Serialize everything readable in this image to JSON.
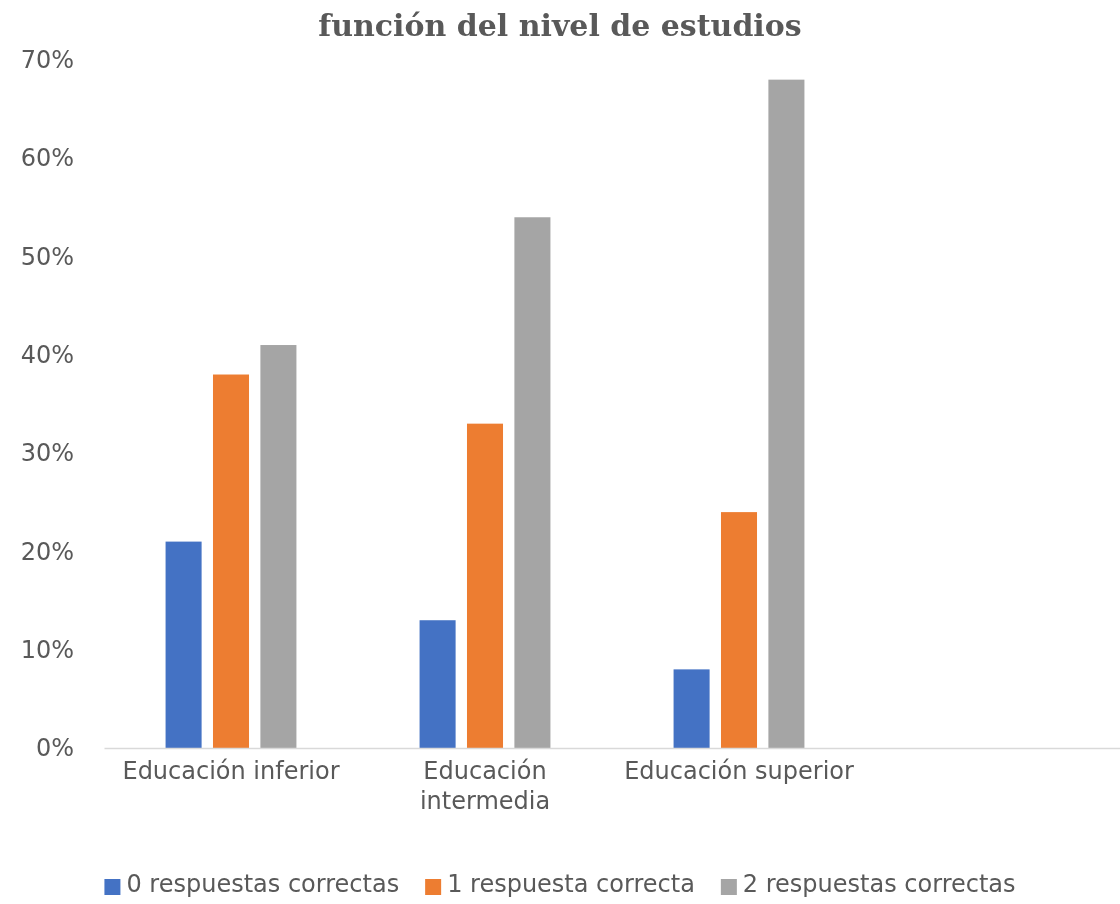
{
  "chart_data": {
    "type": "bar",
    "title": "función del nivel de estudios",
    "categories": [
      "Educación inferior",
      "Educación intermedia",
      "Educación superior",
      null
    ],
    "series": [
      {
        "name": "0 respuestas correctas",
        "color": "#4472c4",
        "values": [
          21,
          13,
          8,
          null
        ]
      },
      {
        "name": "1 respuesta correcta",
        "color": "#ed7d31",
        "values": [
          38,
          33,
          24,
          null
        ]
      },
      {
        "name": "2 respuestas correctas",
        "color": "#a5a5a5",
        "values": [
          41,
          54,
          68,
          null
        ]
      }
    ],
    "ylim": [
      0,
      70
    ],
    "yticks": [
      {
        "value": 0,
        "label": "0%"
      },
      {
        "value": 10,
        "label": "10%"
      },
      {
        "value": 20,
        "label": "20%"
      },
      {
        "value": 30,
        "label": "30%"
      },
      {
        "value": 40,
        "label": "40%"
      },
      {
        "value": 50,
        "label": "50%"
      },
      {
        "value": 60,
        "label": "60%"
      },
      {
        "value": 70,
        "label": "70%"
      }
    ],
    "grid": false,
    "legend": "bottom"
  }
}
